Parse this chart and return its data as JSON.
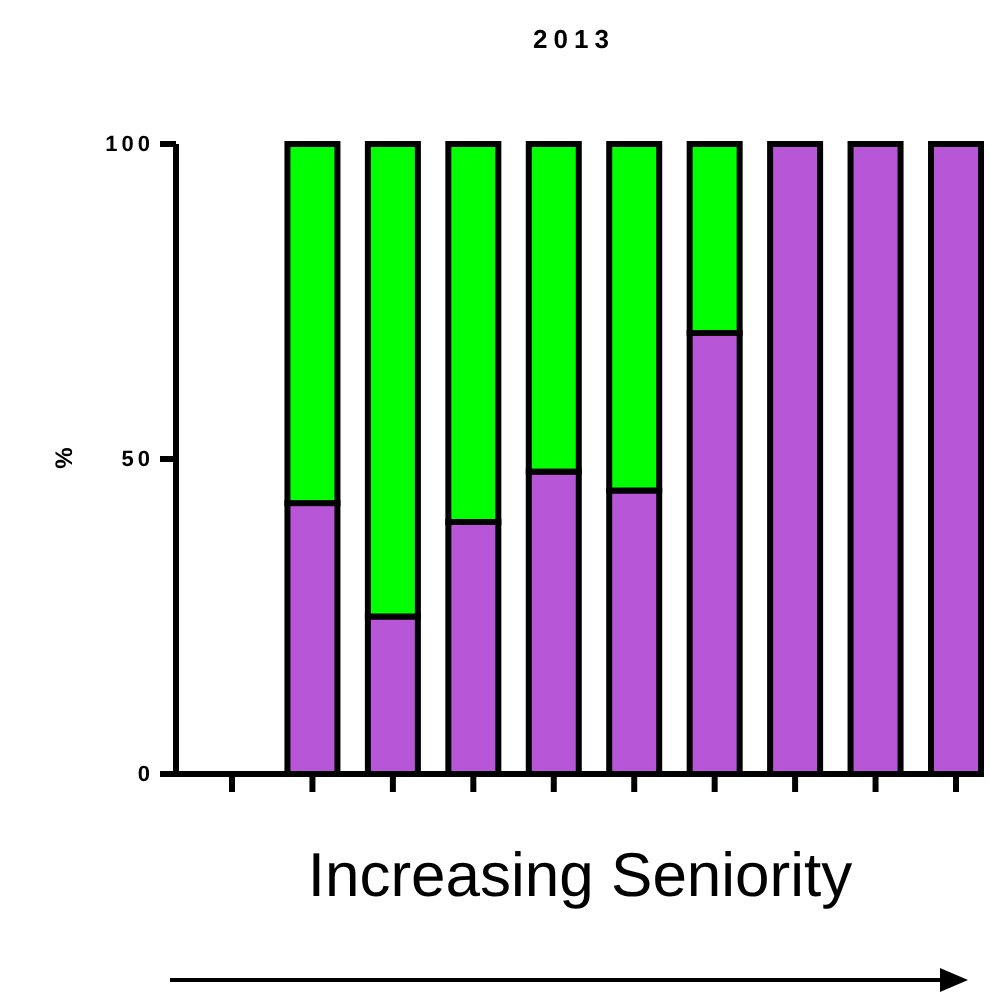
{
  "chart_data": {
    "type": "bar",
    "title": "2013",
    "xlabel": "Increasing Seniority",
    "ylabel": "%",
    "stacked": true,
    "categories": [
      null,
      null,
      null,
      null,
      null,
      null,
      null,
      null,
      null,
      null
    ],
    "series": [
      {
        "color": "#b856d8",
        "values": [
          null,
          43,
          25,
          40,
          48,
          45,
          70,
          100,
          100,
          100
        ]
      },
      {
        "color": "#00ff00",
        "values": [
          null,
          57,
          75,
          60,
          52,
          55,
          30,
          0,
          0,
          0
        ]
      }
    ],
    "ylim": [
      0,
      100
    ],
    "yticks": [
      0,
      50,
      100
    ],
    "grid": false
  }
}
